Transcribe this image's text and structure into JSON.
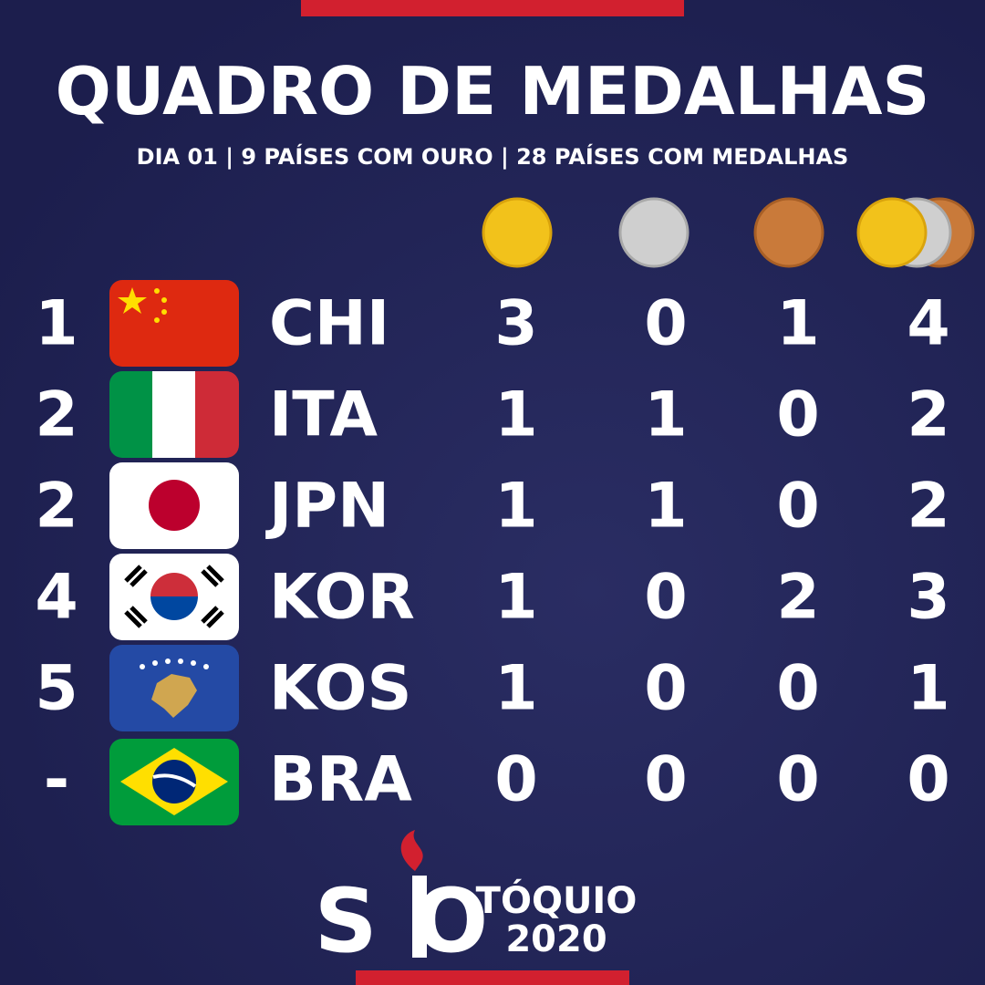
{
  "header": {
    "title": "QUADRO DE MEDALHAS",
    "subtitle": "DIA 01 | 9 PAÍSES COM OURO | 28 PAÍSES COM MEDALHAS"
  },
  "table": {
    "rows": [
      [
        "1",
        "CHI",
        3,
        0,
        1,
        4
      ],
      [
        "2",
        "ITA",
        1,
        1,
        0,
        2
      ],
      [
        "2",
        "JPN",
        1,
        1,
        0,
        2
      ],
      [
        "4",
        "KOR",
        1,
        0,
        2,
        3
      ],
      [
        "5",
        "KOS",
        1,
        0,
        0,
        1
      ],
      [
        "-",
        "BRA",
        0,
        0,
        0,
        0
      ]
    ]
  },
  "logo": {
    "letters": "SO",
    "text": "TÓQUIO",
    "year": "2020"
  }
}
